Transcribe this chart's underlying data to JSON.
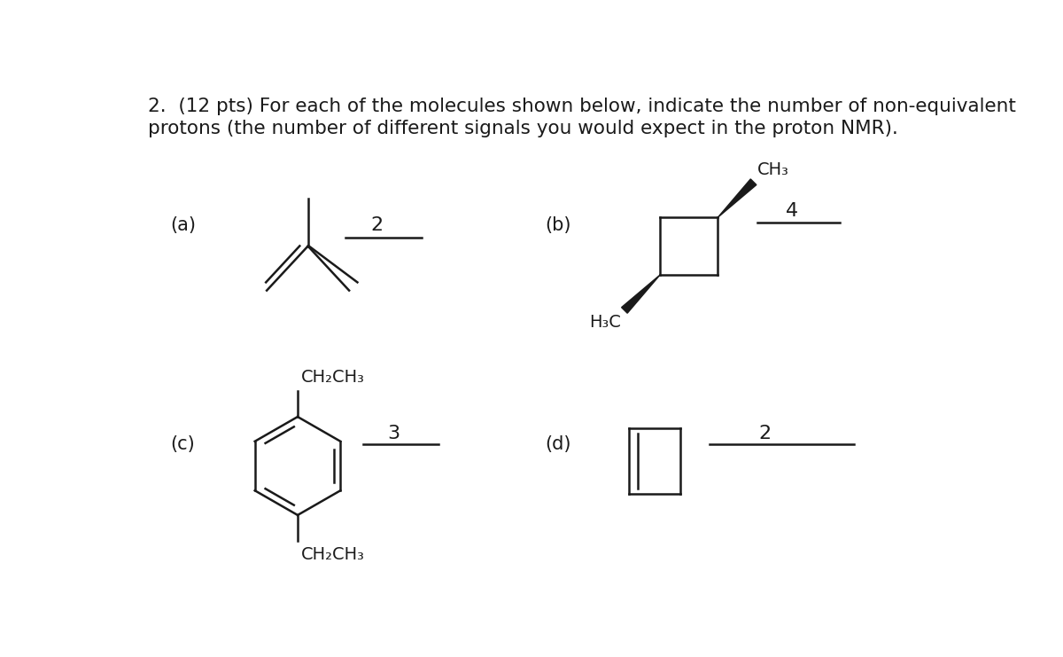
{
  "title_line1": "2.  (12 pts) For each of the molecules shown below, indicate the number of non-equivalent",
  "title_line2": "protons (the number of different signals you would expect in the proton NMR).",
  "bg_color": "#ffffff",
  "text_color": "#1a1a1a",
  "label_a": "(a)",
  "label_b": "(b)",
  "label_c": "(c)",
  "label_d": "(d)",
  "answer_a": "2",
  "answer_b": "4",
  "answer_c": "3",
  "answer_d": "2",
  "ch3_top": "CH₃",
  "h3c_bottom": "H₃C",
  "ch2ch3_top": "CH₂CH₃",
  "ch2ch3_bottom": "CH₂CH₃"
}
